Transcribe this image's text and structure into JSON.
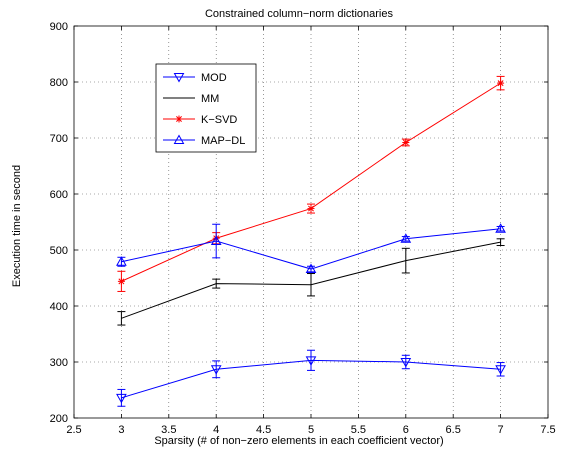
{
  "chart_data": {
    "type": "line",
    "title": "Constrained column−norm dictionaries",
    "xlabel": "Sparsity (# of non−zero elements in each coefficient vector)",
    "ylabel": "Execution time in second",
    "xlim": [
      2.5,
      7.5
    ],
    "ylim": [
      200,
      900
    ],
    "xticks": [
      2.5,
      3,
      3.5,
      4,
      4.5,
      5,
      5.5,
      6,
      6.5,
      7,
      7.5
    ],
    "yticks": [
      200,
      300,
      400,
      500,
      600,
      700,
      800,
      900
    ],
    "grid": true,
    "legend_position": "upper-left",
    "x": [
      3,
      4,
      5,
      6,
      7
    ],
    "series": [
      {
        "name": "MOD",
        "color": "#0000ff",
        "marker": "triangle-down",
        "values": [
          236,
          287,
          303,
          300,
          287
        ],
        "errors": [
          15,
          15,
          18,
          12,
          12
        ]
      },
      {
        "name": "MM",
        "color": "#000000",
        "marker": "none",
        "values": [
          378,
          440,
          438,
          481,
          514
        ],
        "errors": [
          12,
          8,
          20,
          22,
          6
        ]
      },
      {
        "name": "K−SVD",
        "color": "#ff0000",
        "marker": "asterisk",
        "values": [
          444,
          521,
          574,
          692,
          798
        ],
        "errors": [
          18,
          10,
          8,
          6,
          12
        ]
      },
      {
        "name": "MAP−DL",
        "color": "#0000ff",
        "marker": "triangle-up",
        "values": [
          479,
          516,
          466,
          520,
          538
        ],
        "errors": [
          8,
          30,
          5,
          4,
          4
        ]
      }
    ]
  }
}
